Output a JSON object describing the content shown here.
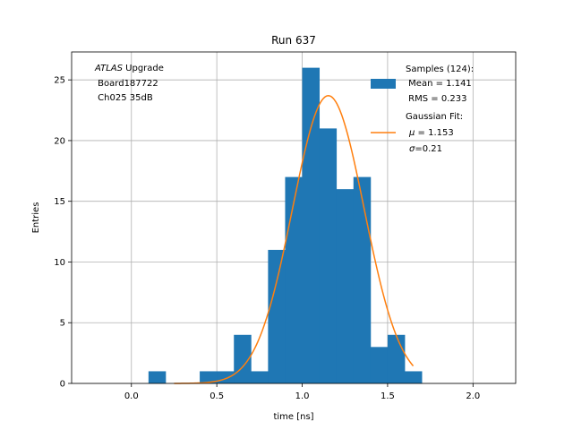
{
  "chart_data": {
    "type": "bar",
    "title": "Run 637",
    "xlabel": "time [ns]",
    "ylabel": "Entries",
    "xlim": [
      -0.35,
      2.25
    ],
    "ylim": [
      0,
      27.3
    ],
    "grid": true,
    "bin_width": 0.1,
    "bins": [
      {
        "x0": 0.1,
        "value": 1
      },
      {
        "x0": 0.2,
        "value": 0
      },
      {
        "x0": 0.3,
        "value": 0
      },
      {
        "x0": 0.4,
        "value": 1
      },
      {
        "x0": 0.5,
        "value": 1
      },
      {
        "x0": 0.6,
        "value": 4
      },
      {
        "x0": 0.7,
        "value": 1
      },
      {
        "x0": 0.8,
        "value": 11
      },
      {
        "x0": 0.9,
        "value": 17
      },
      {
        "x0": 1.0,
        "value": 26
      },
      {
        "x0": 1.1,
        "value": 21
      },
      {
        "x0": 1.2,
        "value": 16
      },
      {
        "x0": 1.3,
        "value": 17
      },
      {
        "x0": 1.4,
        "value": 3
      },
      {
        "x0": 1.5,
        "value": 4
      },
      {
        "x0": 1.6,
        "value": 1
      }
    ],
    "gaussian_fit": {
      "amplitude": 23.7,
      "mu": 1.153,
      "sigma": 0.21,
      "x_range": [
        0.25,
        1.65
      ],
      "color": "#ff7f0e"
    },
    "bar_color": "#1f77b4",
    "x_ticks": [
      {
        "value": 0.0,
        "label": "0.0"
      },
      {
        "value": 0.5,
        "label": "0.5"
      },
      {
        "value": 1.0,
        "label": "1.0"
      },
      {
        "value": 1.5,
        "label": "1.5"
      },
      {
        "value": 2.0,
        "label": "2.0"
      }
    ],
    "y_ticks": [
      {
        "value": 0,
        "label": "0"
      },
      {
        "value": 5,
        "label": "5"
      },
      {
        "value": 10,
        "label": "10"
      },
      {
        "value": 15,
        "label": "15"
      },
      {
        "value": 20,
        "label": "20"
      },
      {
        "value": 25,
        "label": "25"
      }
    ],
    "legend": {
      "placement": "top-right",
      "samples": {
        "line1": "Samples (124):",
        "line2": " Mean = 1.141",
        "line3": " RMS = 0.233"
      },
      "fit": {
        "line1": "Gaussian Fit:",
        "line2_symbol": "μ",
        "line2_value": " = 1.153",
        "line3_symbol": "σ",
        "line3_value": "=0.21"
      }
    },
    "annotation": {
      "experiment": "ATLAS",
      "suffix": " Upgrade",
      "line2": " Board187722",
      "line3": " Ch025 35dB"
    }
  }
}
